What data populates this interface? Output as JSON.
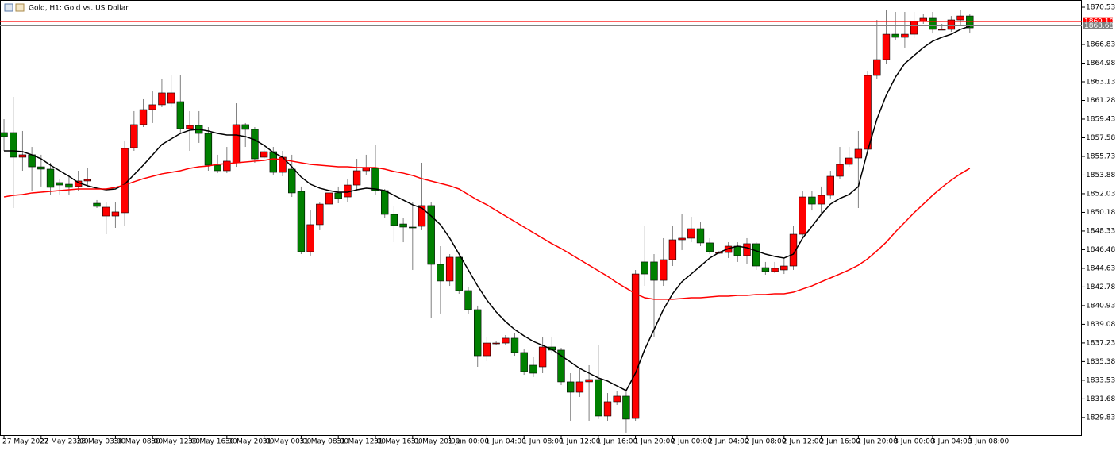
{
  "chart_data": {
    "type": "candlestick",
    "title": "Gold, H1: Gold vs. US Dollar",
    "xlim": [
      -0.43,
      116.07
    ],
    "ylim": [
      1828.01,
      1871.24
    ],
    "xticks": [
      {
        "value": 0,
        "label": "27 May 2022"
      },
      {
        "value": 4,
        "label": "27 May 23:00"
      },
      {
        "value": 8,
        "label": "28 May 03:00"
      },
      {
        "value": 12,
        "label": "30 May 08:00"
      },
      {
        "value": 16,
        "label": "30 May 12:00"
      },
      {
        "value": 20,
        "label": "30 May 16:00"
      },
      {
        "value": 24,
        "label": "30 May 20:00"
      },
      {
        "value": 28,
        "label": "31 May 00:00"
      },
      {
        "value": 32,
        "label": "31 May 08:00"
      },
      {
        "value": 36,
        "label": "31 May 12:00"
      },
      {
        "value": 40,
        "label": "31 May 16:00"
      },
      {
        "value": 44,
        "label": "31 May 20:00"
      },
      {
        "value": 48,
        "label": "1 Jun 00:00"
      },
      {
        "value": 52,
        "label": "1 Jun 04:00"
      },
      {
        "value": 56,
        "label": "1 Jun 08:00"
      },
      {
        "value": 60,
        "label": "1 Jun 12:00"
      },
      {
        "value": 64,
        "label": "1 Jun 16:00"
      },
      {
        "value": 68,
        "label": "1 Jun 20:00"
      },
      {
        "value": 72,
        "label": "2 Jun 00:00"
      },
      {
        "value": 76,
        "label": "2 Jun 04:00"
      },
      {
        "value": 80,
        "label": "2 Jun 08:00"
      },
      {
        "value": 84,
        "label": "2 Jun 12:00"
      },
      {
        "value": 88,
        "label": "2 Jun 16:00"
      },
      {
        "value": 92,
        "label": "2 Jun 20:00"
      },
      {
        "value": 96,
        "label": "3 Jun 00:00"
      },
      {
        "value": 100,
        "label": "3 Jun 04:00"
      },
      {
        "value": 104,
        "label": "3 Jun 08:00"
      }
    ],
    "yticks": [
      1870.53,
      1866.83,
      1864.98,
      1863.13,
      1861.28,
      1859.43,
      1857.58,
      1855.73,
      1853.88,
      1852.03,
      1850.18,
      1848.33,
      1846.48,
      1844.63,
      1842.78,
      1840.93,
      1839.08,
      1837.23,
      1835.38,
      1833.53,
      1831.68,
      1829.83
    ],
    "price_lines": [
      {
        "value": 1869.1,
        "label": "1869.10",
        "color": "#ff0000"
      },
      {
        "value": 1868.68,
        "label": "1868.68",
        "color": "#808080"
      }
    ],
    "up_color": "#ff0000",
    "down_color": "#008000",
    "open": [
      1858.09,
      1858.09,
      1855.65,
      1855.89,
      1854.7,
      1854.47,
      1853.13,
      1852.97,
      1852.74,
      1853.29,
      1851.08,
      1849.82,
      1849.82,
      1850.14,
      1856.59,
      1858.88,
      1860.37,
      1860.85,
      1861.0,
      1861.16,
      1858.48,
      1858.8,
      1858.01,
      1854.86,
      1854.31,
      1855.1,
      1858.88,
      1858.41,
      1855.65,
      1856.2,
      1854.15,
      1854.47,
      1852.26,
      1846.28,
      1848.96,
      1851.0,
      1852.11,
      1851.71,
      1852.89,
      1854.31,
      1854.55,
      1852.34,
      1849.98,
      1849.03,
      1848.72,
      1848.8,
      1850.85,
      1845.02,
      1843.37,
      1845.73,
      1842.42,
      1840.53,
      1835.96,
      1837.22,
      1837.22,
      1837.7,
      1836.28,
      1835.02,
      1834.86,
      1836.83,
      1836.52,
      1833.37,
      1832.34,
      1833.37,
      1833.6,
      1829.98,
      1831.4,
      1831.95,
      1829.74,
      1845.26,
      1845.26,
      1843.44,
      1845.49,
      1847.46,
      1847.62,
      1848.56,
      1847.15,
      1846.2,
      1846.2,
      1846.83,
      1845.89,
      1847.07,
      1844.7,
      1844.31,
      1844.47,
      1844.86,
      1848.01,
      1851.71,
      1851.0,
      1851.87,
      1853.76,
      1854.94,
      1855.57,
      1856.44,
      1863.76,
      1865.33,
      1867.85,
      1867.54,
      1867.85,
      1869.11,
      1869.43,
      1868.33,
      1868.33,
      1869.27,
      1869.66
    ],
    "high": [
      1859.43,
      1861.63,
      1858.25,
      1856.67,
      1855.89,
      1855.1,
      1853.52,
      1853.76,
      1854.31,
      1854.55,
      1851.4,
      1851.16,
      1851.16,
      1857.22,
      1860.22,
      1861.4,
      1862.18,
      1863.37,
      1863.76,
      1863.76,
      1860.22,
      1860.22,
      1858.64,
      1855.89,
      1856.67,
      1861.0,
      1859.04,
      1858.64,
      1856.67,
      1856.67,
      1856.28,
      1855.89,
      1852.74,
      1850.37,
      1851.16,
      1853.13,
      1852.74,
      1853.52,
      1855.49,
      1855.89,
      1856.83,
      1852.5,
      1850.77,
      1849.59,
      1851.16,
      1855.1,
      1851.16,
      1846.83,
      1846.04,
      1845.89,
      1842.74,
      1840.93,
      1837.78,
      1837.38,
      1838.01,
      1838.17,
      1836.59,
      1835.81,
      1837.78,
      1837.78,
      1836.75,
      1834.23,
      1834.63,
      1835.02,
      1836.99,
      1832.26,
      1832.42,
      1832.66,
      1844.47,
      1848.8,
      1846.04,
      1847.62,
      1848.8,
      1849.98,
      1849.74,
      1849.19,
      1847.62,
      1846.36,
      1847.22,
      1847.22,
      1847.62,
      1847.22,
      1845.26,
      1845.26,
      1845.65,
      1848.8,
      1852.34,
      1852.34,
      1852.74,
      1854.31,
      1856.67,
      1856.67,
      1858.25,
      1864.15,
      1869.27,
      1870.22,
      1870.06,
      1870.06,
      1870.06,
      1869.82,
      1870.06,
      1868.88,
      1869.66,
      1870.29,
      1869.82
    ],
    "low": [
      1856.28,
      1850.61,
      1854.31,
      1852.34,
      1852.74,
      1851.95,
      1851.95,
      1851.95,
      1852.34,
      1852.74,
      1850.61,
      1848.01,
      1848.64,
      1848.8,
      1856.28,
      1858.64,
      1859.04,
      1860.61,
      1860.61,
      1858.01,
      1856.28,
      1857.07,
      1854.31,
      1854.07,
      1854.07,
      1854.7,
      1856.67,
      1855.1,
      1855.49,
      1853.92,
      1853.76,
      1851.71,
      1846.04,
      1845.89,
      1848.41,
      1850.77,
      1851.08,
      1851.16,
      1852.34,
      1853.92,
      1851.95,
      1849.59,
      1847.22,
      1847.22,
      1844.47,
      1848.41,
      1839.74,
      1840.14,
      1842.89,
      1842.11,
      1840.14,
      1834.86,
      1835.41,
      1836.99,
      1836.99,
      1835.96,
      1834.07,
      1833.84,
      1834.23,
      1836.2,
      1833.05,
      1829.51,
      1831.87,
      1829.51,
      1829.67,
      1829.51,
      1831.08,
      1828.33,
      1829.51,
      1842.89,
      1837.78,
      1842.89,
      1844.86,
      1846.44,
      1847.22,
      1846.83,
      1846.04,
      1846.04,
      1845.65,
      1845.26,
      1845.02,
      1844.47,
      1844.0,
      1844.15,
      1844.07,
      1844.47,
      1847.78,
      1850.37,
      1849.98,
      1851.56,
      1853.52,
      1854.7,
      1850.61,
      1856.12,
      1863.37,
      1864.94,
      1867.3,
      1866.52,
      1867.46,
      1868.88,
      1867.93,
      1868.25,
      1868.09,
      1868.72,
      1867.93
    ],
    "close": [
      1857.7,
      1855.65,
      1855.89,
      1854.7,
      1854.47,
      1852.66,
      1852.89,
      1852.66,
      1853.29,
      1853.44,
      1850.77,
      1850.69,
      1850.22,
      1856.52,
      1858.88,
      1860.37,
      1860.85,
      1862.03,
      1862.03,
      1858.48,
      1858.8,
      1858.01,
      1854.86,
      1854.31,
      1855.26,
      1858.88,
      1858.41,
      1855.49,
      1856.2,
      1854.15,
      1855.65,
      1852.11,
      1846.28,
      1848.96,
      1851.0,
      1852.11,
      1851.56,
      1852.89,
      1854.31,
      1854.63,
      1852.34,
      1849.98,
      1848.88,
      1848.72,
      1848.64,
      1850.85,
      1845.02,
      1843.37,
      1845.73,
      1842.42,
      1840.53,
      1835.96,
      1837.22,
      1837.22,
      1837.7,
      1836.28,
      1834.39,
      1834.23,
      1836.83,
      1836.52,
      1833.37,
      1832.34,
      1833.37,
      1833.6,
      1829.98,
      1831.4,
      1831.95,
      1829.67,
      1844.07,
      1844.07,
      1843.44,
      1845.49,
      1847.46,
      1847.62,
      1848.56,
      1847.15,
      1846.28,
      1846.2,
      1846.83,
      1845.89,
      1847.07,
      1844.86,
      1844.31,
      1844.63,
      1844.86,
      1848.01,
      1851.71,
      1851.0,
      1851.87,
      1853.76,
      1854.94,
      1855.57,
      1856.44,
      1863.76,
      1865.33,
      1867.85,
      1867.54,
      1867.85,
      1869.11,
      1869.43,
      1868.33,
      1868.33,
      1869.27,
      1869.66,
      1868.48
    ],
    "lines": [
      {
        "color": "#000000",
        "values": [
          1856.28,
          1856.28,
          1856.2,
          1855.89,
          1855.49,
          1854.86,
          1854.31,
          1853.76,
          1853.13,
          1852.82,
          1852.58,
          1852.42,
          1852.5,
          1852.97,
          1853.92,
          1854.86,
          1855.89,
          1856.91,
          1857.46,
          1858.01,
          1858.33,
          1858.41,
          1858.25,
          1858.01,
          1857.85,
          1857.85,
          1857.7,
          1857.38,
          1856.83,
          1856.12,
          1855.65,
          1854.7,
          1853.68,
          1852.97,
          1852.58,
          1852.34,
          1852.18,
          1852.18,
          1852.42,
          1852.58,
          1852.5,
          1852.34,
          1851.87,
          1851.4,
          1850.93,
          1850.61,
          1849.82,
          1848.96,
          1847.62,
          1846.04,
          1844.47,
          1842.89,
          1841.48,
          1840.3,
          1839.35,
          1838.56,
          1837.93,
          1837.38,
          1836.99,
          1836.59,
          1835.96,
          1835.33,
          1834.7,
          1834.23,
          1833.76,
          1833.45,
          1832.97,
          1832.5,
          1834.23,
          1836.59,
          1838.56,
          1840.53,
          1842.11,
          1843.29,
          1844.07,
          1844.86,
          1845.65,
          1846.2,
          1846.59,
          1846.83,
          1846.67,
          1846.36,
          1846.04,
          1845.81,
          1845.65,
          1846.04,
          1847.62,
          1848.8,
          1849.98,
          1851.0,
          1851.56,
          1851.95,
          1852.74,
          1856.28,
          1859.43,
          1861.79,
          1863.6,
          1864.94,
          1865.73,
          1866.52,
          1867.15,
          1867.54,
          1867.85,
          1868.33,
          1868.64
        ]
      },
      {
        "color": "#ff0000",
        "values": [
          1851.71,
          1851.87,
          1851.95,
          1852.11,
          1852.18,
          1852.26,
          1852.34,
          1852.42,
          1852.5,
          1852.5,
          1852.5,
          1852.5,
          1852.66,
          1852.89,
          1853.21,
          1853.52,
          1853.76,
          1854.0,
          1854.15,
          1854.31,
          1854.55,
          1854.7,
          1854.78,
          1854.94,
          1855.02,
          1855.1,
          1855.18,
          1855.26,
          1855.33,
          1855.49,
          1855.41,
          1855.26,
          1855.1,
          1854.94,
          1854.86,
          1854.78,
          1854.7,
          1854.7,
          1854.63,
          1854.63,
          1854.63,
          1854.47,
          1854.23,
          1854.07,
          1853.84,
          1853.52,
          1853.29,
          1853.05,
          1852.82,
          1852.5,
          1851.95,
          1851.4,
          1850.93,
          1850.37,
          1849.82,
          1849.27,
          1848.72,
          1848.17,
          1847.62,
          1847.07,
          1846.59,
          1846.04,
          1845.49,
          1844.94,
          1844.39,
          1843.84,
          1843.21,
          1842.66,
          1842.11,
          1841.71,
          1841.56,
          1841.56,
          1841.56,
          1841.63,
          1841.71,
          1841.71,
          1841.79,
          1841.87,
          1841.87,
          1841.95,
          1841.95,
          1842.03,
          1842.03,
          1842.11,
          1842.11,
          1842.26,
          1842.58,
          1842.89,
          1843.29,
          1843.68,
          1844.07,
          1844.47,
          1844.94,
          1845.57,
          1846.36,
          1847.22,
          1848.25,
          1849.19,
          1850.14,
          1851.0,
          1851.87,
          1852.66,
          1853.37,
          1854.0,
          1854.55
        ]
      }
    ]
  }
}
